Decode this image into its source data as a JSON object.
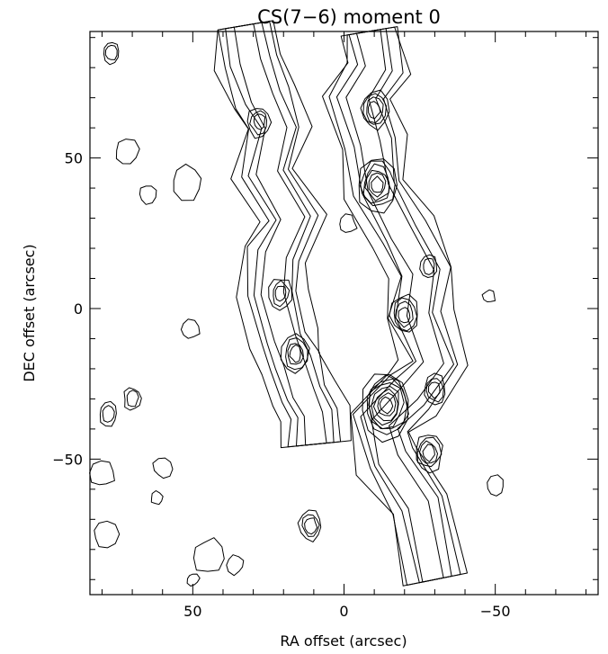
{
  "chart_data": {
    "type": "contour",
    "title": "CS(7−6) moment 0",
    "xlabel": "RA offset (arcsec)",
    "ylabel": "DEC offset (arcsec)",
    "xlim": [
      84,
      -84
    ],
    "ylim": [
      -95,
      92
    ],
    "x_ticks": [
      {
        "value": 50,
        "label": "50"
      },
      {
        "value": 0,
        "label": "0"
      },
      {
        "value": -50,
        "label": "−50"
      }
    ],
    "y_ticks": [
      {
        "value": 50,
        "label": "50"
      },
      {
        "value": 0,
        "label": "0"
      },
      {
        "value": -50,
        "label": "−50"
      }
    ],
    "grid": false,
    "ridges": [
      {
        "name": "eastern ridge",
        "levels": 4,
        "spine": [
          [
            33,
            94
          ],
          [
            31,
            82
          ],
          [
            27,
            70
          ],
          [
            22,
            60
          ],
          [
            26,
            45
          ],
          [
            17,
            30
          ],
          [
            23,
            18
          ],
          [
            24,
            5
          ],
          [
            20,
            -10
          ],
          [
            17,
            -18
          ],
          [
            13,
            -28
          ],
          [
            10,
            -35
          ],
          [
            9,
            -45
          ]
        ]
      },
      {
        "name": "western ridge",
        "levels": 4,
        "spine": [
          [
            -8,
            92
          ],
          [
            -10,
            80
          ],
          [
            -4,
            70
          ],
          [
            -9,
            55
          ],
          [
            -11,
            40
          ],
          [
            -19,
            25
          ],
          [
            -26,
            12
          ],
          [
            -24,
            -2
          ],
          [
            -30,
            -18
          ],
          [
            -22,
            -28
          ],
          [
            -12,
            -38
          ],
          [
            -15,
            -50
          ],
          [
            -25,
            -65
          ],
          [
            -30,
            -90
          ]
        ]
      }
    ],
    "peaks": [
      {
        "x": 28,
        "y": 62,
        "rings": 3
      },
      {
        "x": -10,
        "y": 66,
        "rings": 4
      },
      {
        "x": -11,
        "y": 41,
        "rings": 6
      },
      {
        "x": 21,
        "y": 5,
        "rings": 3
      },
      {
        "x": 16,
        "y": -15,
        "rings": 4
      },
      {
        "x": -20,
        "y": -2,
        "rings": 4
      },
      {
        "x": -28,
        "y": 14,
        "rings": 2
      },
      {
        "x": -14,
        "y": -32,
        "rings": 8
      },
      {
        "x": -30,
        "y": -27,
        "rings": 3
      },
      {
        "x": -28,
        "y": -48,
        "rings": 4
      },
      {
        "x": 11,
        "y": -72,
        "rings": 3
      },
      {
        "x": 77,
        "y": 85,
        "rings": 2
      },
      {
        "x": 78,
        "y": -35,
        "rings": 2
      },
      {
        "x": 70,
        "y": -30,
        "rings": 2
      }
    ],
    "islands": [
      {
        "x": 72,
        "y": 52,
        "r": 4
      },
      {
        "x": 65,
        "y": 38,
        "r": 3
      },
      {
        "x": 52,
        "y": 42,
        "r": 5
      },
      {
        "x": -1,
        "y": 28,
        "r": 3
      },
      {
        "x": 51,
        "y": -7,
        "r": 3
      },
      {
        "x": -48,
        "y": 4,
        "r": 2
      },
      {
        "x": -50,
        "y": -59,
        "r": 3
      },
      {
        "x": 60,
        "y": -53,
        "r": 3
      },
      {
        "x": 62,
        "y": -63,
        "r": 2
      },
      {
        "x": 36,
        "y": -85,
        "r": 3
      },
      {
        "x": 45,
        "y": -82,
        "r": 5
      },
      {
        "x": 50,
        "y": -90,
        "r": 2
      },
      {
        "x": 79,
        "y": -75,
        "r": 4
      },
      {
        "x": 80,
        "y": -55,
        "r": 4
      }
    ]
  }
}
